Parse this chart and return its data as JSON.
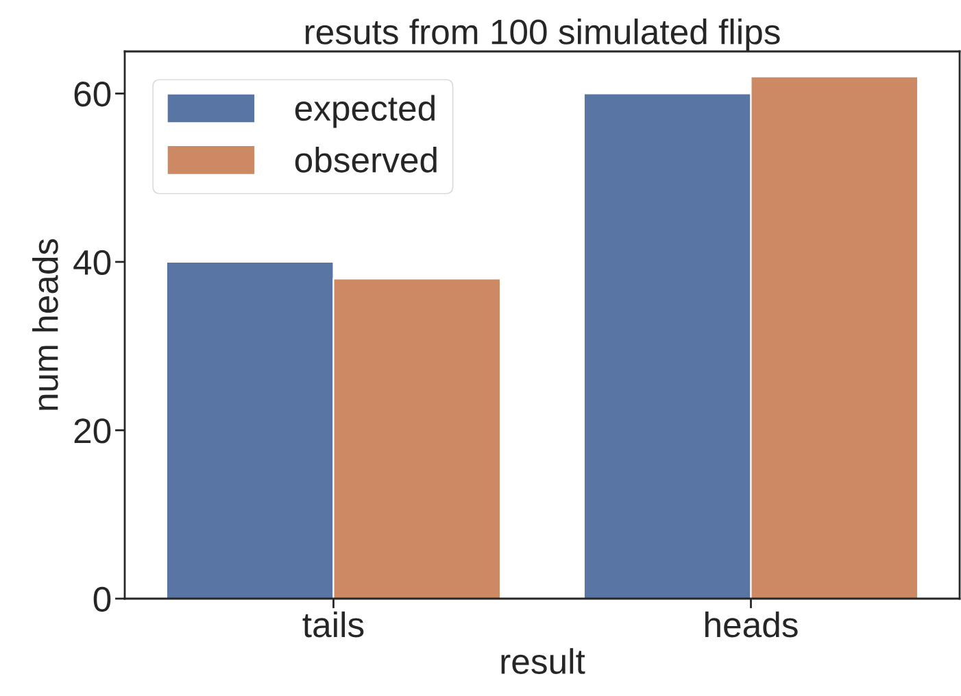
{
  "chart_data": {
    "type": "bar",
    "title": "resuts from 100 simulated flips",
    "xlabel": "result",
    "ylabel": "num heads",
    "categories": [
      "tails",
      "heads"
    ],
    "series": [
      {
        "name": "expected",
        "color": "#5875a4",
        "values": [
          40,
          60
        ]
      },
      {
        "name": "observed",
        "color": "#cc8963",
        "values": [
          38,
          62
        ]
      }
    ],
    "ylim": [
      0,
      65
    ],
    "yticks": [
      0,
      20,
      40,
      60
    ],
    "grid": false,
    "legend": "top left"
  }
}
